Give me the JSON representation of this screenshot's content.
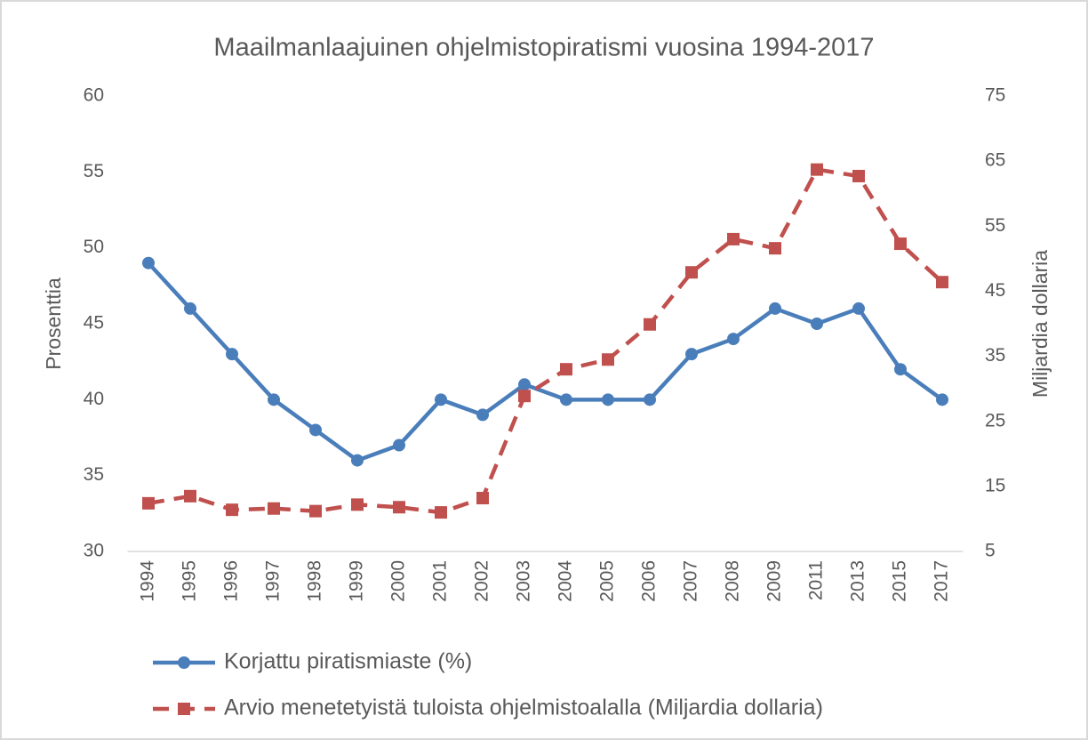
{
  "chart_data": {
    "type": "line",
    "title": "Maailmanlaajuinen ohjelmistopiratismi vuosina 1994-2017",
    "y_label": "Prosenttia",
    "y2_label": "Miljardia dollaria",
    "categories": [
      "1994",
      "1995",
      "1996",
      "1997",
      "1998",
      "1999",
      "2000",
      "2001",
      "2002",
      "2003",
      "2004",
      "2005",
      "2006",
      "2007",
      "2008",
      "2009",
      "2011",
      "2013",
      "2015",
      "2017"
    ],
    "series": [
      {
        "name": "Korjattu piratismiaste (%)",
        "color": "#4a7ebb",
        "marker": "circle",
        "dashed": false,
        "values": [
          49,
          46,
          43,
          40,
          38,
          36,
          37,
          40,
          39,
          41,
          40,
          40,
          40,
          43,
          44,
          46,
          45,
          46,
          42,
          40
        ]
      },
      {
        "name": "Arvio menetetyistä tuloista ohjelmistoalalla (Miljardia dollaria)",
        "color": "#c0504d",
        "marker": "square",
        "dashed": true,
        "axis": "y2",
        "values": [
          12.4,
          13.5,
          11.4,
          11.6,
          11.2,
          12.2,
          11.8,
          11.0,
          13.2,
          28.9,
          33.0,
          34.5,
          39.9,
          47.9,
          53.0,
          51.6,
          63.7,
          62.7,
          52.3,
          46.4
        ]
      }
    ],
    "ylim": [
      30,
      60
    ],
    "yticks": [
      30,
      35,
      40,
      45,
      50,
      55,
      60
    ],
    "y2lim": [
      5,
      75
    ],
    "y2ticks": [
      5,
      15,
      25,
      35,
      45,
      55,
      65,
      75
    ],
    "grid": false,
    "legend": "bottom"
  }
}
